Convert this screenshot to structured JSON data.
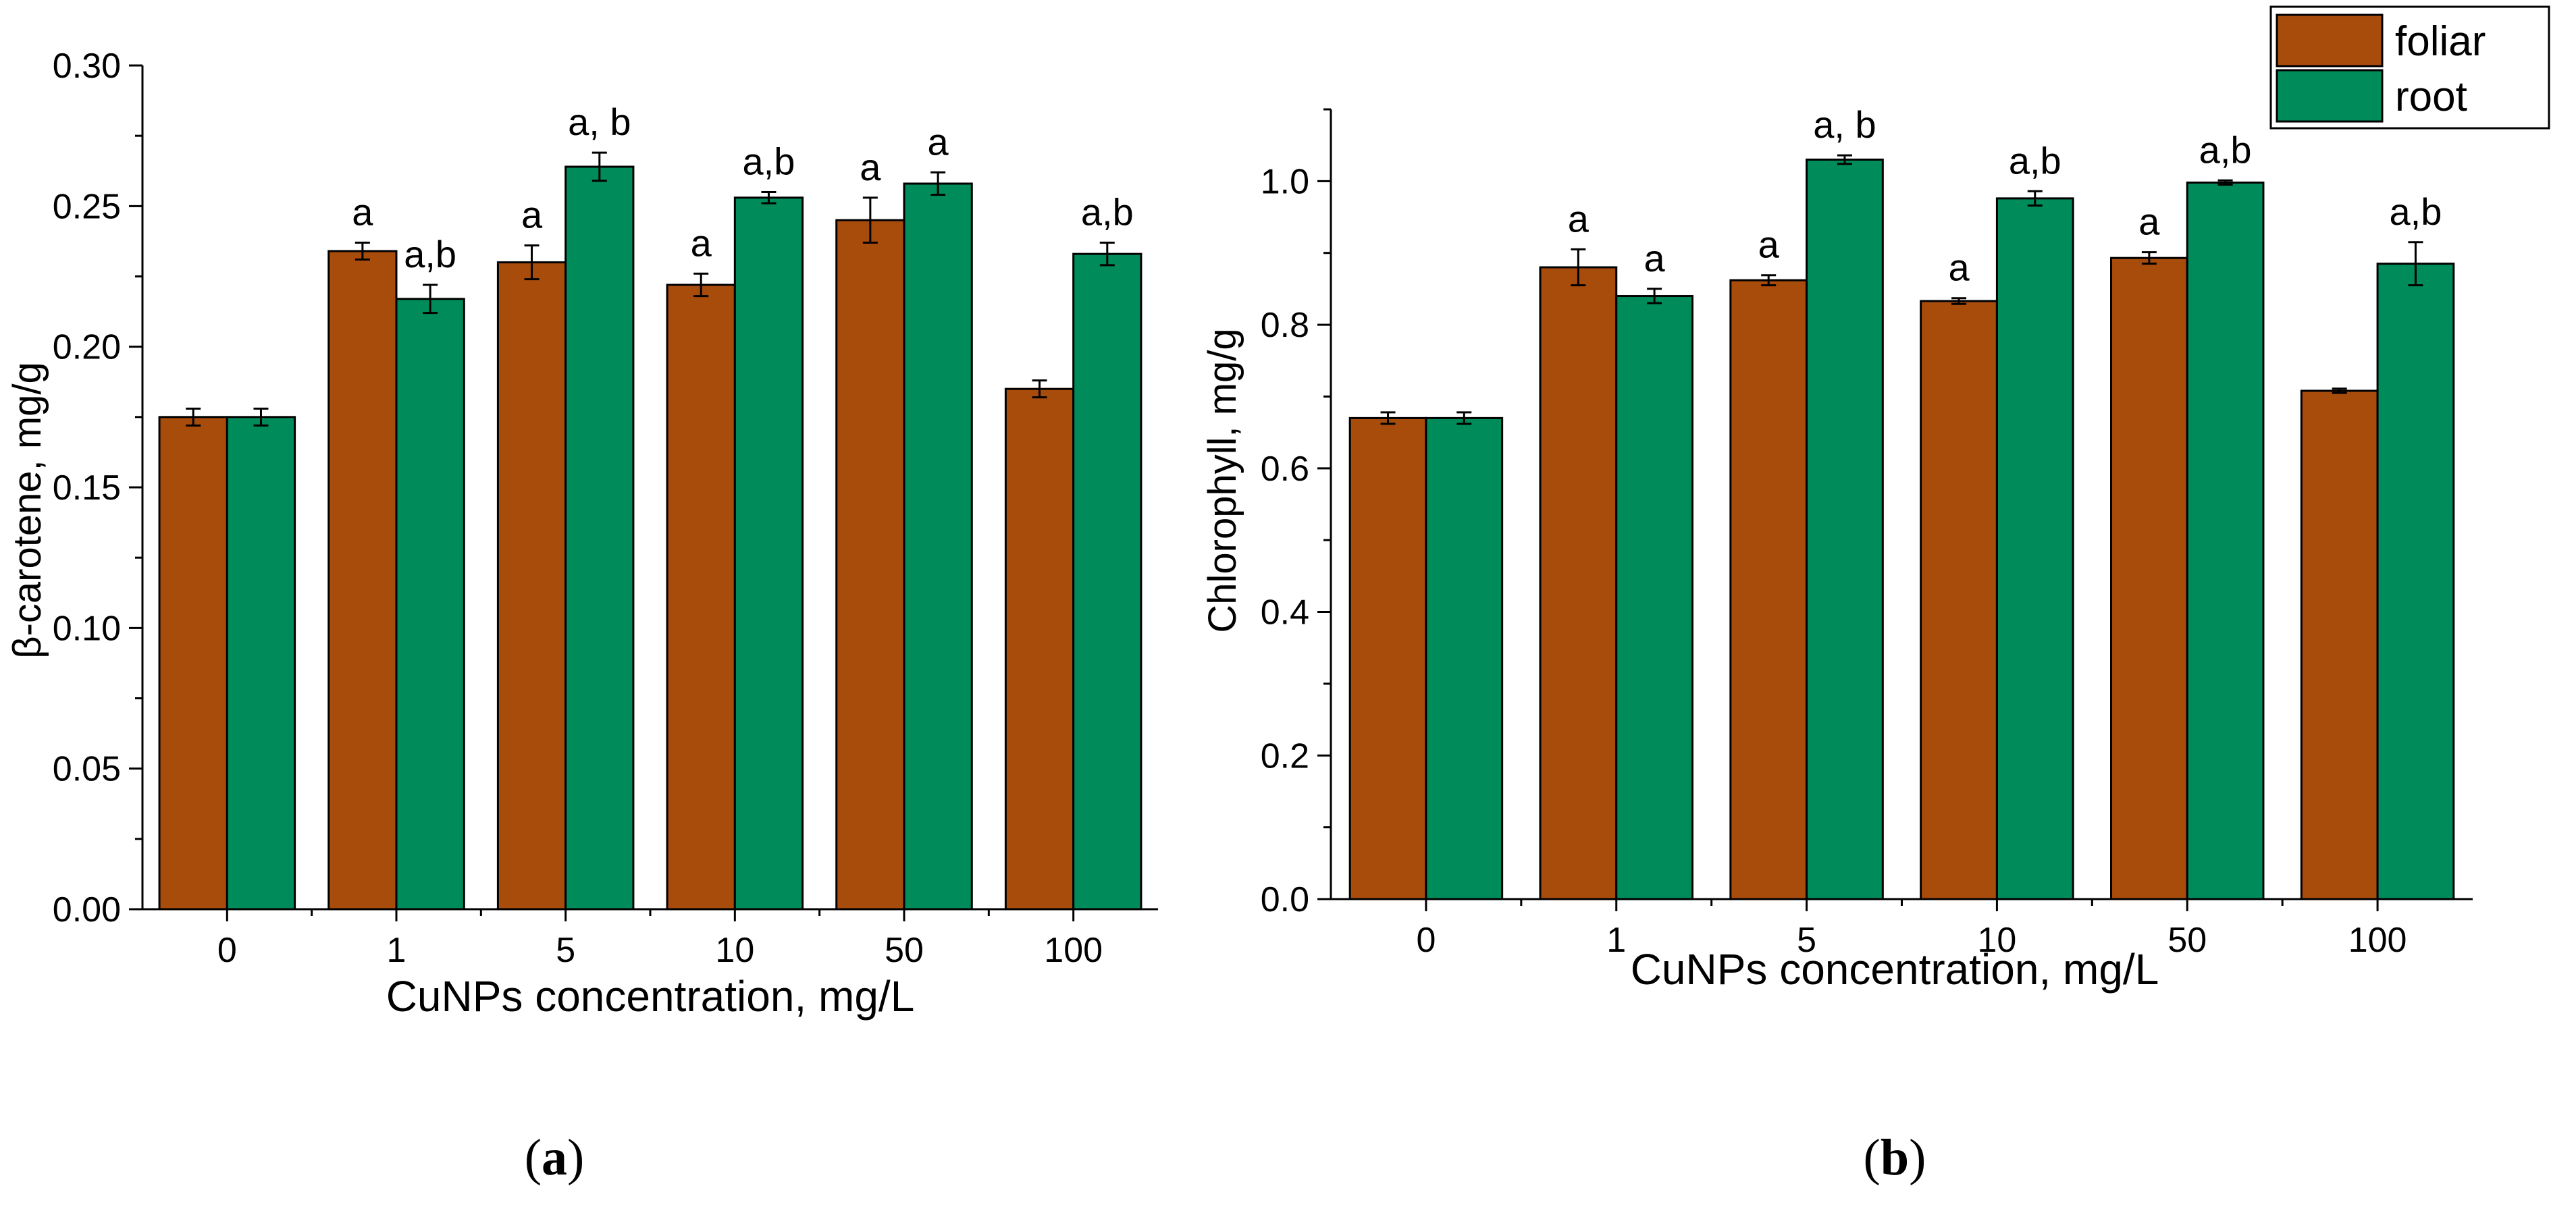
{
  "charts": [
    {
      "type": "bar",
      "panel_label": "a",
      "xlabel": "CuNPs concentration, mg/L",
      "ylabel": "β-carotene, mg/g",
      "ylim": [
        0,
        0.3
      ],
      "yticks": [
        "0.00",
        "0.05",
        "0.10",
        "0.15",
        "0.20",
        "0.25",
        "0.30"
      ],
      "categories": [
        "0",
        "1",
        "5",
        "10",
        "50",
        "100"
      ],
      "series": [
        {
          "name": "foliar",
          "color": "#a84c0c",
          "values": [
            0.175,
            0.234,
            0.23,
            0.222,
            0.245,
            0.185
          ],
          "errors": [
            0.003,
            0.003,
            0.006,
            0.004,
            0.008,
            0.003
          ],
          "annotations": [
            "",
            "a",
            "a",
            "a",
            "a",
            ""
          ]
        },
        {
          "name": "root",
          "color": "#008c5a",
          "values": [
            0.175,
            0.217,
            0.264,
            0.253,
            0.258,
            0.233
          ],
          "errors": [
            0.003,
            0.005,
            0.005,
            0.002,
            0.004,
            0.004
          ],
          "annotations": [
            "",
            "a,b",
            "a, b",
            "a,b",
            "a",
            "a,b"
          ]
        }
      ]
    },
    {
      "type": "bar",
      "panel_label": "b",
      "xlabel": "CuNPs concentration, mg/L",
      "ylabel": "Chlorophyll, mg/g",
      "ylim": [
        0,
        1.1
      ],
      "yticks": [
        "0.0",
        "0.2",
        "0.4",
        "0.6",
        "0.8",
        "1.0"
      ],
      "categories": [
        "0",
        "1",
        "5",
        "10",
        "50",
        "100"
      ],
      "legend": {
        "position": "top-right",
        "entries": [
          "foliar",
          "root"
        ]
      },
      "series": [
        {
          "name": "foliar",
          "color": "#a84c0c",
          "values": [
            0.67,
            0.88,
            0.862,
            0.833,
            0.893,
            0.708
          ],
          "errors": [
            0.008,
            0.025,
            0.007,
            0.004,
            0.008,
            0.003
          ],
          "annotations": [
            "",
            "a",
            "a",
            "a",
            "a",
            ""
          ]
        },
        {
          "name": "root",
          "color": "#008c5a",
          "values": [
            0.67,
            0.84,
            1.03,
            0.976,
            0.998,
            0.885
          ],
          "errors": [
            0.008,
            0.01,
            0.006,
            0.01,
            0.003,
            0.03
          ],
          "annotations": [
            "",
            "a",
            "a, b",
            "a,b",
            "a,b",
            "a,b"
          ]
        }
      ]
    }
  ]
}
